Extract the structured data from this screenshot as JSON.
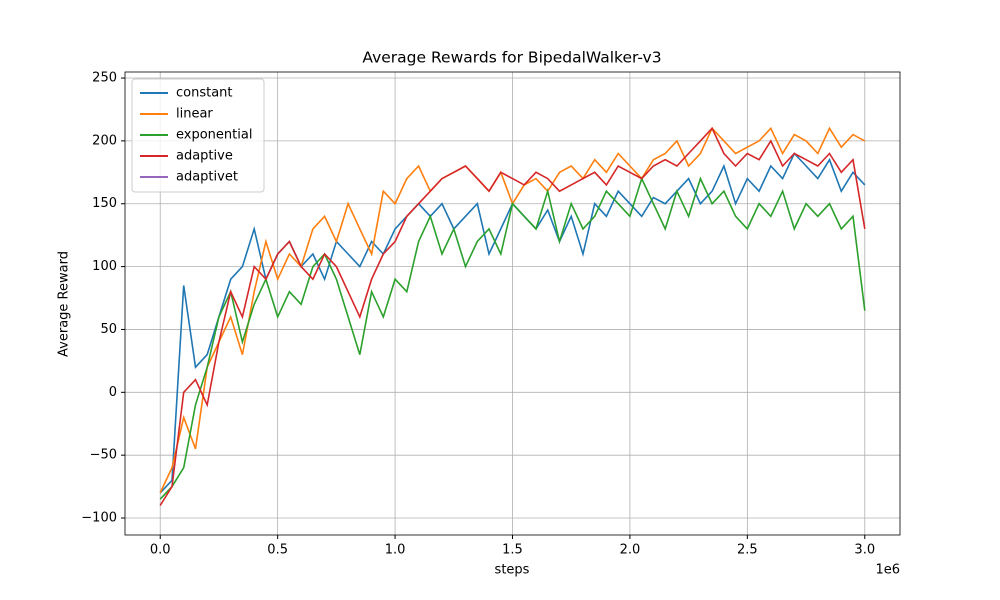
{
  "chart_data": {
    "type": "line",
    "title": "Average Rewards for BipedalWalker-v3",
    "x_label": "steps",
    "y_label": "Average Reward",
    "x_offset_label": "1e6",
    "x": [
      0,
      50000,
      100000,
      150000,
      200000,
      250000,
      300000,
      350000,
      400000,
      450000,
      500000,
      550000,
      600000,
      650000,
      700000,
      750000,
      800000,
      850000,
      900000,
      950000,
      1000000,
      1050000,
      1100000,
      1150000,
      1200000,
      1250000,
      1300000,
      1350000,
      1400000,
      1450000,
      1500000,
      1550000,
      1600000,
      1650000,
      1700000,
      1750000,
      1800000,
      1850000,
      1900000,
      1950000,
      2000000,
      2050000,
      2100000,
      2150000,
      2200000,
      2250000,
      2300000,
      2350000,
      2400000,
      2450000,
      2500000,
      2550000,
      2600000,
      2650000,
      2700000,
      2750000,
      2800000,
      2850000,
      2900000,
      2950000,
      3000000
    ],
    "series": [
      {
        "name": "constant",
        "color": "#1f77b4",
        "values": [
          -80,
          -70,
          85,
          20,
          30,
          60,
          90,
          100,
          130,
          90,
          110,
          120,
          100,
          110,
          90,
          120,
          110,
          100,
          120,
          110,
          130,
          140,
          150,
          140,
          150,
          130,
          140,
          150,
          110,
          130,
          150,
          140,
          130,
          145,
          120,
          140,
          110,
          150,
          140,
          160,
          150,
          140,
          155,
          150,
          160,
          170,
          150,
          160,
          180,
          150,
          170,
          160,
          180,
          170,
          190,
          180,
          170,
          185,
          160,
          175,
          165
        ]
      },
      {
        "name": "linear",
        "color": "#ff7f0e",
        "values": [
          -80,
          -60,
          -20,
          -45,
          20,
          40,
          60,
          30,
          80,
          120,
          90,
          110,
          100,
          130,
          140,
          120,
          150,
          130,
          110,
          160,
          150,
          170,
          180,
          160,
          170,
          175,
          180,
          170,
          160,
          175,
          150,
          165,
          170,
          160,
          175,
          180,
          170,
          185,
          175,
          190,
          180,
          170,
          185,
          190,
          200,
          180,
          190,
          210,
          200,
          190,
          195,
          200,
          210,
          190,
          205,
          200,
          190,
          210,
          195,
          205,
          200
        ]
      },
      {
        "name": "exponential",
        "color": "#2ca02c",
        "values": [
          -85,
          -75,
          -60,
          -10,
          20,
          60,
          80,
          40,
          70,
          90,
          60,
          80,
          70,
          100,
          110,
          90,
          60,
          30,
          80,
          60,
          90,
          80,
          120,
          140,
          110,
          130,
          100,
          120,
          130,
          110,
          150,
          140,
          130,
          160,
          120,
          150,
          130,
          140,
          160,
          150,
          140,
          170,
          150,
          130,
          160,
          140,
          170,
          150,
          160,
          140,
          130,
          150,
          140,
          160,
          130,
          150,
          140,
          150,
          130,
          140,
          65
        ]
      },
      {
        "name": "adaptive",
        "color": "#d62728",
        "values": [
          -90,
          -75,
          0,
          10,
          -10,
          40,
          80,
          60,
          100,
          90,
          110,
          120,
          100,
          90,
          110,
          100,
          80,
          60,
          90,
          110,
          120,
          140,
          150,
          160,
          170,
          175,
          180,
          170,
          160,
          175,
          170,
          165,
          175,
          170,
          160,
          165,
          170,
          175,
          165,
          180,
          175,
          170,
          180,
          185,
          180,
          190,
          200,
          210,
          190,
          180,
          190,
          185,
          200,
          180,
          190,
          185,
          180,
          190,
          175,
          185,
          130
        ]
      },
      {
        "name": "adaptivet",
        "color": "#9467bd",
        "values": [
          null,
          null,
          null,
          null,
          null,
          null,
          null,
          null,
          null,
          null,
          null,
          null,
          null,
          null,
          null,
          null,
          null,
          null,
          null,
          null,
          null,
          null,
          null,
          null,
          null,
          null,
          null,
          null,
          null,
          null,
          null,
          null,
          null,
          null,
          null,
          null,
          null,
          null,
          null,
          null,
          null,
          null,
          null,
          null,
          null,
          null,
          null,
          null,
          null,
          null,
          null,
          null,
          null,
          null,
          null,
          null,
          null,
          null,
          null,
          null,
          null
        ]
      }
    ],
    "xlim": [
      -150000,
      3150000
    ],
    "xticks": [
      {
        "value": 0,
        "label": "0.0"
      },
      {
        "value": 500000,
        "label": "0.5"
      },
      {
        "value": 1000000,
        "label": "1.0"
      },
      {
        "value": 1500000,
        "label": "1.5"
      },
      {
        "value": 2000000,
        "label": "2.0"
      },
      {
        "value": 2500000,
        "label": "2.5"
      },
      {
        "value": 3000000,
        "label": "3.0"
      }
    ],
    "ylim": [
      -113.5,
      254.8
    ],
    "yticks": [
      {
        "value": -100,
        "label": "−100"
      },
      {
        "value": -50,
        "label": "−50"
      },
      0,
      50,
      100,
      150,
      200,
      250
    ],
    "grid": true,
    "legend": "upper left"
  }
}
